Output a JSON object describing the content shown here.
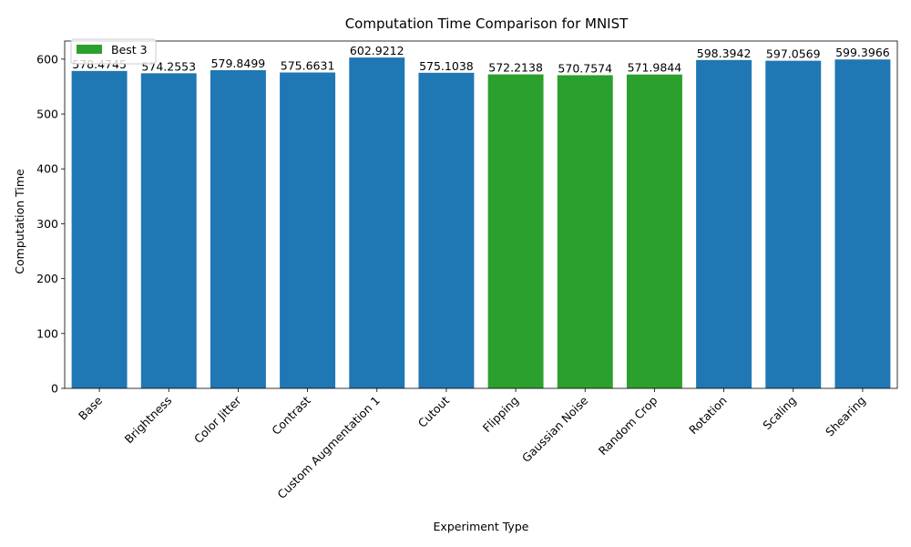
{
  "chart_data": {
    "type": "bar",
    "title": "Computation Time Comparison for MNIST",
    "xlabel": "Experiment Type",
    "ylabel": "Computation Time",
    "categories": [
      "Base",
      "Brightness",
      "Color Jitter",
      "Contrast",
      "Custom Augmentation 1",
      "Cutout",
      "Flipping",
      "Gaussian Noise",
      "Random Crop",
      "Rotation",
      "Scaling",
      "Shearing"
    ],
    "values": [
      578.4745,
      574.2553,
      579.8499,
      575.6631,
      602.9212,
      575.1038,
      572.2138,
      570.7574,
      571.9844,
      598.3942,
      597.0569,
      599.3966
    ],
    "value_labels": [
      "578.4745",
      "574.2553",
      "579.8499",
      "575.6631",
      "602.9212",
      "575.1038",
      "572.2138",
      "570.7574",
      "571.9844",
      "598.3942",
      "597.0569",
      "599.3966"
    ],
    "highlight": [
      false,
      false,
      false,
      false,
      false,
      false,
      true,
      true,
      true,
      false,
      false,
      false
    ],
    "ylim": [
      0,
      633
    ],
    "yticks": [
      0,
      100,
      200,
      300,
      400,
      500,
      600
    ],
    "grid": false,
    "legend": {
      "position": "top-left",
      "entries": [
        {
          "label": "Best 3",
          "color": "#2ca02c"
        }
      ]
    },
    "colors": {
      "default": "#1f77b4",
      "highlight": "#2ca02c"
    }
  }
}
